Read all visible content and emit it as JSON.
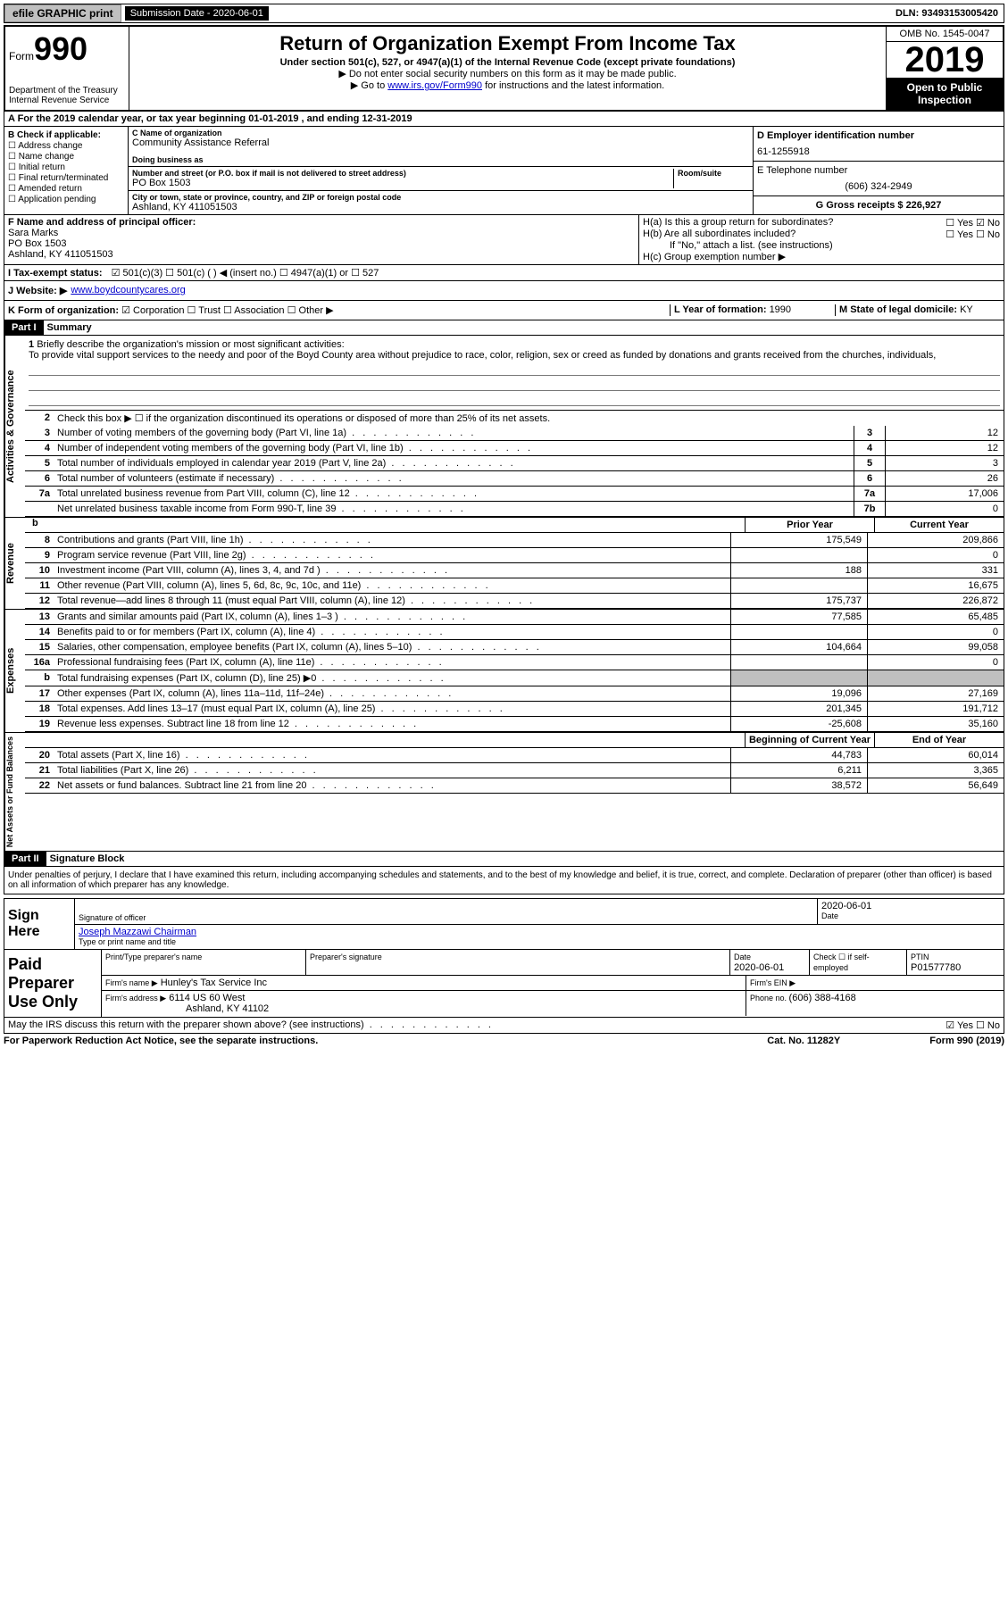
{
  "topbar": {
    "efile": "efile GRAPHIC print",
    "submission_label": "Submission Date - 2020-06-01",
    "dln": "DLN: 93493153005420"
  },
  "header": {
    "form_label": "Form",
    "form_number": "990",
    "title": "Return of Organization Exempt From Income Tax",
    "subtitle": "Under section 501(c), 527, or 4947(a)(1) of the Internal Revenue Code (except private foundations)",
    "warn1": "▶ Do not enter social security numbers on this form as it may be made public.",
    "warn2_pre": "▶ Go to ",
    "warn2_link": "www.irs.gov/Form990",
    "warn2_post": " for instructions and the latest information.",
    "dept": "Department of the Treasury\nInternal Revenue Service",
    "omb": "OMB No. 1545-0047",
    "year": "2019",
    "open": "Open to Public Inspection"
  },
  "line_a": "A For the 2019 calendar year, or tax year beginning 01-01-2019   , and ending 12-31-2019",
  "section_b": {
    "label": "B Check if applicable:",
    "opts": [
      "Address change",
      "Name change",
      "Initial return",
      "Final return/terminated",
      "Amended return",
      "Application pending"
    ]
  },
  "section_c": {
    "name_label": "C Name of organization",
    "name": "Community Assistance Referral",
    "dba_label": "Doing business as",
    "dba": "",
    "addr_label": "Number and street (or P.O. box if mail is not delivered to street address)",
    "room_label": "Room/suite",
    "addr": "PO Box 1503",
    "city_label": "City or town, state or province, country, and ZIP or foreign postal code",
    "city": "Ashland, KY  411051503"
  },
  "section_d": {
    "label": "D Employer identification number",
    "value": "61-1255918"
  },
  "section_e": {
    "label": "E Telephone number",
    "value": "(606) 324-2949"
  },
  "section_g": {
    "label": "G Gross receipts $ ",
    "value": "226,927"
  },
  "section_f": {
    "label": "F Name and address of principal officer:",
    "name": "Sara Marks",
    "addr1": "PO Box 1503",
    "addr2": "Ashland, KY  411051503"
  },
  "section_h": {
    "h_a": "H(a)  Is this a group return for subordinates?",
    "h_a_ans": "☐ Yes  ☑ No",
    "h_b": "H(b)  Are all subordinates included?",
    "h_b_ans": "☐ Yes  ☐ No",
    "h_b_note": "If \"No,\" attach a list. (see instructions)",
    "h_c": "H(c)  Group exemption number ▶"
  },
  "section_i": {
    "label": "I  Tax-exempt status:",
    "opts": "☑ 501(c)(3)    ☐ 501(c) (  ) ◀ (insert no.)    ☐ 4947(a)(1) or    ☐ 527"
  },
  "section_j": {
    "label": "J  Website: ▶",
    "value": "www.boydcountycares.org"
  },
  "section_k": {
    "label": "K Form of organization:",
    "opts": "☑ Corporation  ☐ Trust  ☐ Association  ☐ Other ▶"
  },
  "section_l": {
    "label": "L Year of formation: ",
    "value": "1990"
  },
  "section_m": {
    "label": "M State of legal domicile: ",
    "value": "KY"
  },
  "part1": {
    "header": "Part I",
    "title": "Summary",
    "q1_label": "1",
    "q1": "Briefly describe the organization's mission or most significant activities:",
    "mission": "To provide vital support services to the needy and poor of the Boyd County area without prejudice to race, color, religion, sex or creed as funded by donations and grants received from the churches, individuals,",
    "q2": "Check this box ▶ ☐ if the organization discontinued its operations or disposed of more than 25% of its net assets.",
    "rows_num": [
      {
        "n": "3",
        "d": "Number of voting members of the governing body (Part VI, line 1a)",
        "box": "3",
        "v": "12"
      },
      {
        "n": "4",
        "d": "Number of independent voting members of the governing body (Part VI, line 1b)",
        "box": "4",
        "v": "12"
      },
      {
        "n": "5",
        "d": "Total number of individuals employed in calendar year 2019 (Part V, line 2a)",
        "box": "5",
        "v": "3"
      },
      {
        "n": "6",
        "d": "Total number of volunteers (estimate if necessary)",
        "box": "6",
        "v": "26"
      },
      {
        "n": "7a",
        "d": "Total unrelated business revenue from Part VIII, column (C), line 12",
        "box": "7a",
        "v": "17,006"
      },
      {
        "n": "",
        "d": "Net unrelated business taxable income from Form 990-T, line 39",
        "box": "7b",
        "v": "0"
      }
    ]
  },
  "revenue": {
    "label": "Revenue",
    "header_b": "b",
    "prior_h": "Prior Year",
    "curr_h": "Current Year",
    "rows": [
      {
        "n": "8",
        "d": "Contributions and grants (Part VIII, line 1h)",
        "p": "175,549",
        "c": "209,866"
      },
      {
        "n": "9",
        "d": "Program service revenue (Part VIII, line 2g)",
        "p": "",
        "c": "0"
      },
      {
        "n": "10",
        "d": "Investment income (Part VIII, column (A), lines 3, 4, and 7d )",
        "p": "188",
        "c": "331"
      },
      {
        "n": "11",
        "d": "Other revenue (Part VIII, column (A), lines 5, 6d, 8c, 9c, 10c, and 11e)",
        "p": "",
        "c": "16,675"
      },
      {
        "n": "12",
        "d": "Total revenue—add lines 8 through 11 (must equal Part VIII, column (A), line 12)",
        "p": "175,737",
        "c": "226,872"
      }
    ]
  },
  "expenses": {
    "label": "Expenses",
    "rows": [
      {
        "n": "13",
        "d": "Grants and similar amounts paid (Part IX, column (A), lines 1–3 )",
        "p": "77,585",
        "c": "65,485"
      },
      {
        "n": "14",
        "d": "Benefits paid to or for members (Part IX, column (A), line 4)",
        "p": "",
        "c": "0"
      },
      {
        "n": "15",
        "d": "Salaries, other compensation, employee benefits (Part IX, column (A), lines 5–10)",
        "p": "104,664",
        "c": "99,058"
      },
      {
        "n": "16a",
        "d": "Professional fundraising fees (Part IX, column (A), line 11e)",
        "p": "",
        "c": "0"
      },
      {
        "n": "b",
        "d": "Total fundraising expenses (Part IX, column (D), line 25) ▶0",
        "p": "shaded",
        "c": "shaded"
      },
      {
        "n": "17",
        "d": "Other expenses (Part IX, column (A), lines 11a–11d, 11f–24e)",
        "p": "19,096",
        "c": "27,169"
      },
      {
        "n": "18",
        "d": "Total expenses. Add lines 13–17 (must equal Part IX, column (A), line 25)",
        "p": "201,345",
        "c": "191,712"
      },
      {
        "n": "19",
        "d": "Revenue less expenses. Subtract line 18 from line 12",
        "p": "-25,608",
        "c": "35,160"
      }
    ]
  },
  "netassets": {
    "label": "Net Assets or Fund Balances",
    "prior_h": "Beginning of Current Year",
    "curr_h": "End of Year",
    "rows": [
      {
        "n": "20",
        "d": "Total assets (Part X, line 16)",
        "p": "44,783",
        "c": "60,014"
      },
      {
        "n": "21",
        "d": "Total liabilities (Part X, line 26)",
        "p": "6,211",
        "c": "3,365"
      },
      {
        "n": "22",
        "d": "Net assets or fund balances. Subtract line 21 from line 20",
        "p": "38,572",
        "c": "56,649"
      }
    ]
  },
  "part2": {
    "header": "Part II",
    "title": "Signature Block",
    "declaration": "Under penalties of perjury, I declare that I have examined this return, including accompanying schedules and statements, and to the best of my knowledge and belief, it is true, correct, and complete. Declaration of preparer (other than officer) is based on all information of which preparer has any knowledge."
  },
  "sign": {
    "left": "Sign Here",
    "sig_officer_label": "Signature of officer",
    "sig_date": "2020-06-01",
    "date_label": "Date",
    "name": "Joseph Mazzawi  Chairman",
    "name_label": "Type or print name and title"
  },
  "preparer": {
    "left": "Paid Preparer Use Only",
    "h1": "Print/Type preparer's name",
    "h2": "Preparer's signature",
    "h3": "Date",
    "date": "2020-06-01",
    "h4": "Check ☐ if self-employed",
    "h5": "PTIN",
    "ptin": "P01577780",
    "firm_label": "Firm's name    ▶",
    "firm": "Hunley's Tax Service Inc",
    "ein_label": "Firm's EIN ▶",
    "addr_label": "Firm's address ▶",
    "addr1": "6114 US 60 West",
    "addr2": "Ashland, KY  41102",
    "phone_label": "Phone no. ",
    "phone": "(606) 388-4168"
  },
  "footer": {
    "discuss": "May the IRS discuss this return with the preparer shown above? (see instructions)",
    "yes_no": "☑ Yes  ☐ No",
    "paperwork": "For Paperwork Reduction Act Notice, see the separate instructions.",
    "cat": "Cat. No. 11282Y",
    "form": "Form 990 (2019)"
  }
}
